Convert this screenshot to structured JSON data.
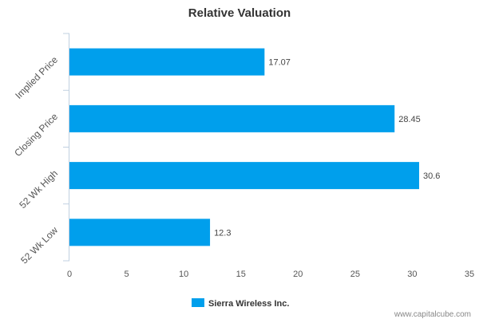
{
  "chart_data": {
    "type": "bar",
    "orientation": "horizontal",
    "title": "Relative Valuation",
    "categories": [
      "Implied Price",
      "Closing Price",
      "52 Wk High",
      "52 Wk Low"
    ],
    "series": [
      {
        "name": "Sierra Wireless Inc.",
        "values": [
          17.07,
          28.45,
          30.6,
          12.3
        ],
        "value_labels": [
          "17.07",
          "28.45",
          "30.6",
          "12.3"
        ],
        "color": "#009FEC"
      }
    ],
    "xlim": [
      0,
      35
    ],
    "x_ticks": [
      0,
      5,
      10,
      15,
      20,
      25,
      30,
      35
    ],
    "grid": false,
    "legend_position": "bottom-center"
  },
  "watermark": "www.capitalcube.com",
  "colors": {
    "bar": "#009FEC",
    "axis": "#C0D0E0",
    "text": "#555555"
  }
}
